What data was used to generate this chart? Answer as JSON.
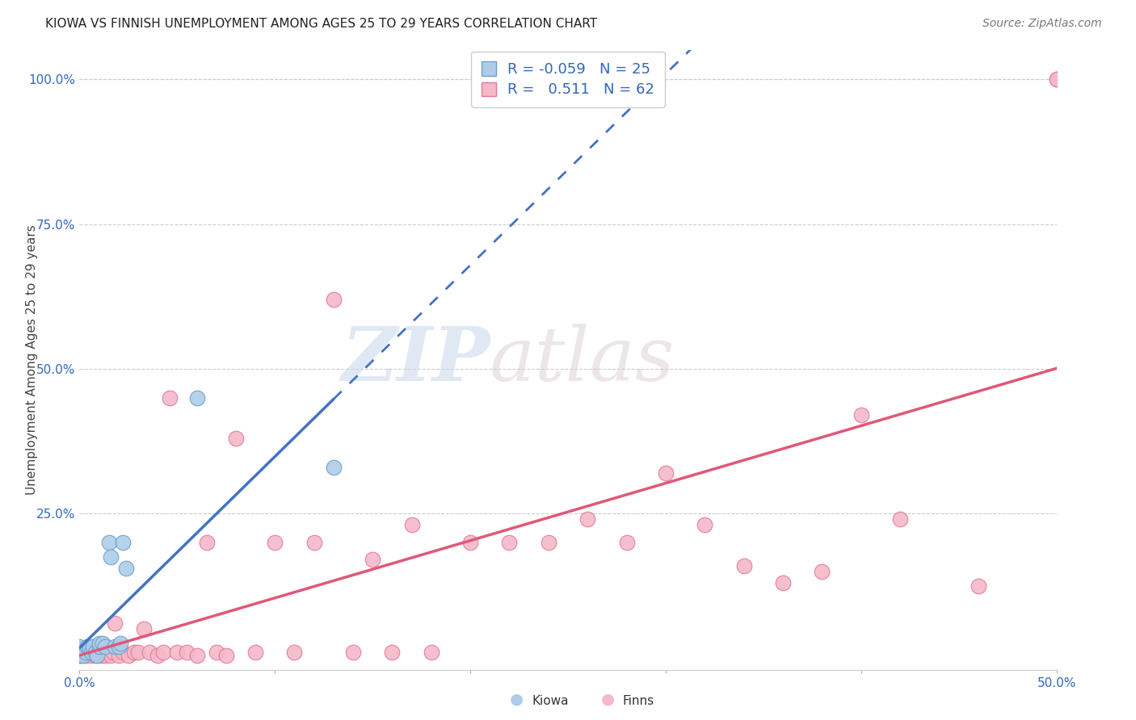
{
  "title": "KIOWA VS FINNISH UNEMPLOYMENT AMONG AGES 25 TO 29 YEARS CORRELATION CHART",
  "source": "Source: ZipAtlas.com",
  "ylabel": "Unemployment Among Ages 25 to 29 years",
  "xlim": [
    0.0,
    0.5
  ],
  "ylim": [
    -0.02,
    1.05
  ],
  "ytick_labels": [
    "100.0%",
    "75.0%",
    "50.0%",
    "25.0%"
  ],
  "ytick_vals": [
    1.0,
    0.75,
    0.5,
    0.25
  ],
  "background_color": "#ffffff",
  "watermark_zip": "ZIP",
  "watermark_atlas": "atlas",
  "kiowa_color": "#aecce8",
  "finns_color": "#f5b8c8",
  "kiowa_edge": "#6a9fc8",
  "finns_edge": "#e07898",
  "trendline_kiowa_color": "#4472c4",
  "trendline_finns_color": "#e05878",
  "legend_R_kiowa": "-0.059",
  "legend_N_kiowa": "25",
  "legend_R_finns": "0.511",
  "legend_N_finns": "62",
  "kiowa_x": [
    0.0,
    0.0,
    0.0,
    0.0,
    0.002,
    0.003,
    0.004,
    0.005,
    0.006,
    0.007,
    0.008,
    0.009,
    0.01,
    0.01,
    0.012,
    0.013,
    0.015,
    0.016,
    0.018,
    0.02,
    0.021,
    0.022,
    0.024,
    0.06,
    0.13
  ],
  "kiowa_y": [
    0.005,
    0.01,
    0.015,
    0.02,
    0.005,
    0.01,
    0.02,
    0.015,
    0.01,
    0.02,
    0.01,
    0.005,
    0.02,
    0.025,
    0.025,
    0.02,
    0.2,
    0.175,
    0.02,
    0.02,
    0.025,
    0.2,
    0.155,
    0.45,
    0.33
  ],
  "finns_x": [
    0.0,
    0.0,
    0.001,
    0.002,
    0.003,
    0.004,
    0.005,
    0.006,
    0.007,
    0.008,
    0.009,
    0.01,
    0.011,
    0.012,
    0.013,
    0.014,
    0.015,
    0.016,
    0.017,
    0.018,
    0.02,
    0.022,
    0.025,
    0.028,
    0.03,
    0.033,
    0.036,
    0.04,
    0.043,
    0.046,
    0.05,
    0.055,
    0.06,
    0.065,
    0.07,
    0.075,
    0.08,
    0.09,
    0.1,
    0.11,
    0.12,
    0.13,
    0.14,
    0.15,
    0.16,
    0.17,
    0.18,
    0.2,
    0.22,
    0.24,
    0.26,
    0.28,
    0.3,
    0.32,
    0.34,
    0.36,
    0.38,
    0.4,
    0.42,
    0.46,
    0.5,
    0.5
  ],
  "finns_y": [
    0.005,
    0.015,
    0.005,
    0.01,
    0.005,
    0.015,
    0.01,
    0.005,
    0.015,
    0.005,
    0.01,
    0.015,
    0.005,
    0.01,
    0.005,
    0.015,
    0.01,
    0.005,
    0.01,
    0.06,
    0.005,
    0.01,
    0.005,
    0.01,
    0.01,
    0.05,
    0.01,
    0.005,
    0.01,
    0.45,
    0.01,
    0.01,
    0.005,
    0.2,
    0.01,
    0.005,
    0.38,
    0.01,
    0.2,
    0.01,
    0.2,
    0.62,
    0.01,
    0.17,
    0.01,
    0.23,
    0.01,
    0.2,
    0.2,
    0.2,
    0.24,
    0.2,
    0.32,
    0.23,
    0.16,
    0.13,
    0.15,
    0.42,
    0.24,
    0.125,
    1.0,
    1.0
  ]
}
